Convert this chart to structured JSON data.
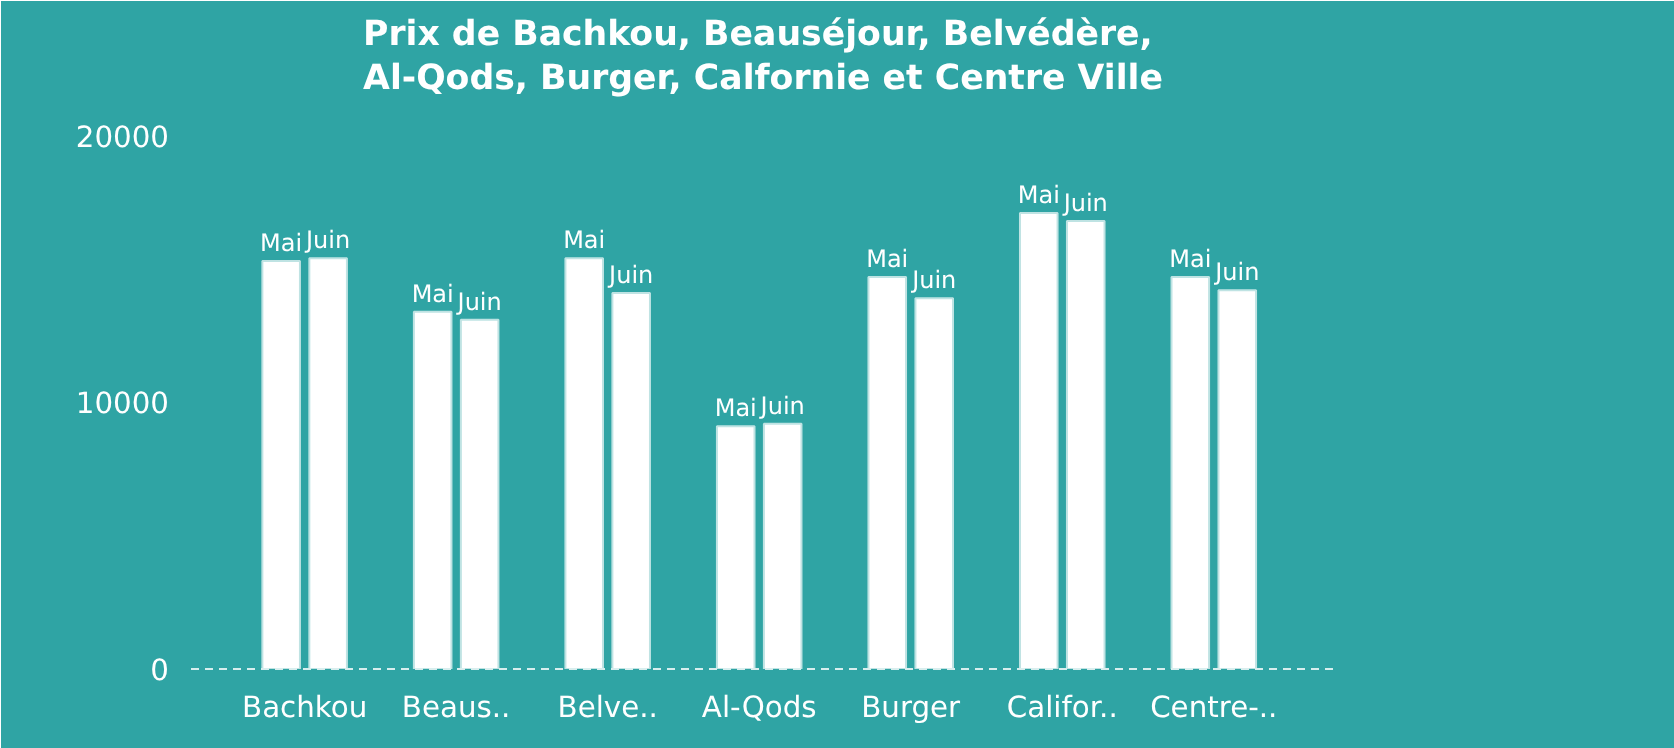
{
  "chart_data": {
    "type": "bar",
    "title": "Prix de Bachkou, Beauséjour, Belvédère,\nAl-Qods, Burger, Calfornie et Centre Ville",
    "categories": [
      "Bachkou",
      "Beaus..",
      "Belve..",
      "Al-Qods",
      "Burger",
      "Califor..",
      "Centre-.."
    ],
    "series": [
      {
        "name": "Mai",
        "color": "#ffffff",
        "values": [
          15300,
          13400,
          15400,
          9100,
          14700,
          17100,
          14700
        ]
      },
      {
        "name": "Juin",
        "color": "#ffffff",
        "values": [
          15400,
          13100,
          14100,
          9200,
          13900,
          16800,
          14200
        ]
      }
    ],
    "ylim": [
      0,
      21000
    ],
    "yticks": [
      0,
      10000,
      20000
    ],
    "grid": false
  }
}
